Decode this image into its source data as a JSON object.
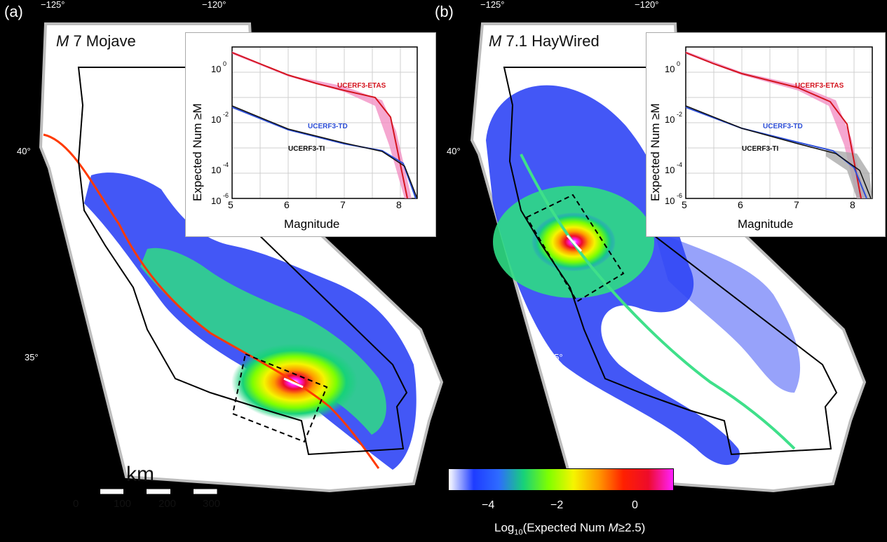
{
  "panels": [
    {
      "label": "(a)",
      "title_italic": "M",
      "title_rest": "7 Mojave",
      "lon_ticks": [
        "−125°",
        "−120°"
      ],
      "lat_ticks": [
        "40°",
        "35°"
      ],
      "inset": {
        "ylabel": "Expected Num ≥M",
        "xlabel": "Magnitude",
        "x_ticks": [
          "5",
          "6",
          "7",
          "8"
        ],
        "series": [
          {
            "name": "UCERF3-ETAS",
            "color": "#d4141e"
          },
          {
            "name": "UCERF3-TD",
            "color": "#2d4fd8"
          },
          {
            "name": "UCERF3-TI",
            "color": "#111111"
          }
        ]
      }
    },
    {
      "label": "(b)",
      "title_italic": "M",
      "title_rest": "7.1 HayWired",
      "lon_ticks": [
        "−125°",
        "−120°"
      ],
      "lat_ticks": [
        "40°",
        "35°"
      ],
      "inset": {
        "ylabel": "Expected Num ≥M",
        "xlabel": "Magnitude",
        "x_ticks": [
          "5",
          "6",
          "7",
          "8"
        ],
        "series": [
          {
            "name": "UCERF3-ETAS",
            "color": "#d4141e"
          },
          {
            "name": "UCERF3-TD",
            "color": "#2d4fd8"
          },
          {
            "name": "UCERF3-TI",
            "color": "#111111"
          }
        ]
      }
    }
  ],
  "inset_y_ticks": [
    {
      "base": "10",
      "exp": "0"
    },
    {
      "base": "10",
      "exp": "-2"
    },
    {
      "base": "10",
      "exp": "-4"
    },
    {
      "base": "10",
      "exp": "-6"
    }
  ],
  "scale_bar": {
    "unit": "km",
    "ticks": [
      "0",
      "100",
      "200",
      "300"
    ]
  },
  "colorbar": {
    "ticks": [
      "−4",
      "−2",
      "0"
    ],
    "label_prefix": "Log",
    "label_sub": "10",
    "label_mid": "(Expected Num ",
    "label_italic": "M",
    "label_suffix": "≥2.5)",
    "colors": [
      "#ffffff",
      "#1e3cff",
      "#2e6bff",
      "#17d17a",
      "#7fff00",
      "#f5f500",
      "#ff9a00",
      "#ff2000",
      "#ee0b2a",
      "#ff20ff"
    ]
  }
}
